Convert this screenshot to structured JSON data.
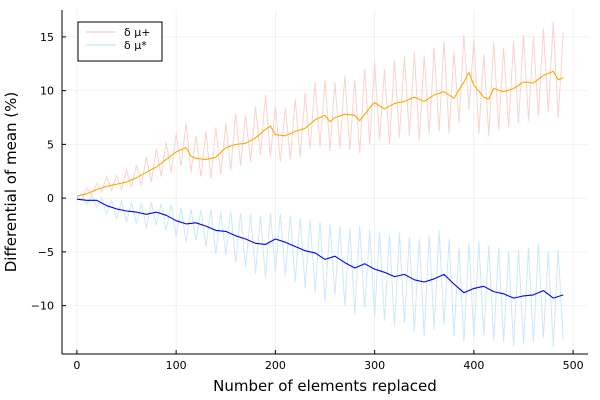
{
  "chart_data": {
    "type": "line",
    "xlabel": "Number of elements replaced",
    "ylabel": "Differential of mean (%)",
    "xlim": [
      -15,
      515
    ],
    "ylim": [
      -14.5,
      17.5
    ],
    "xticks": [
      0,
      100,
      200,
      300,
      400,
      500
    ],
    "yticks": [
      -10,
      -5,
      0,
      5,
      10,
      15
    ],
    "xtick_labels": [
      "0",
      "100",
      "200",
      "300",
      "400",
      "500"
    ],
    "ytick_labels": [
      "−10",
      "−5",
      "0",
      "5",
      "10",
      "15"
    ],
    "grid": true,
    "legend_position": "top-left",
    "series": [
      {
        "name": "δ μ+",
        "color": "#ffa500",
        "raw_color": "#f8cfc6",
        "points": [
          [
            0,
            0.2
          ],
          [
            10,
            0.4
          ],
          [
            20,
            0.8
          ],
          [
            30,
            1.1
          ],
          [
            40,
            1.3
          ],
          [
            50,
            1.5
          ],
          [
            60,
            1.9
          ],
          [
            70,
            2.4
          ],
          [
            80,
            2.9
          ],
          [
            90,
            3.6
          ],
          [
            100,
            4.3
          ],
          [
            110,
            4.7
          ],
          [
            115,
            3.9
          ],
          [
            120,
            3.7
          ],
          [
            130,
            3.6
          ],
          [
            140,
            3.8
          ],
          [
            150,
            4.7
          ],
          [
            160,
            5.0
          ],
          [
            170,
            5.1
          ],
          [
            180,
            5.6
          ],
          [
            190,
            6.4
          ],
          [
            195,
            6.7
          ],
          [
            200,
            5.9
          ],
          [
            210,
            5.8
          ],
          [
            220,
            6.2
          ],
          [
            230,
            6.5
          ],
          [
            240,
            7.3
          ],
          [
            250,
            7.7
          ],
          [
            255,
            7.1
          ],
          [
            260,
            7.5
          ],
          [
            270,
            7.8
          ],
          [
            280,
            7.7
          ],
          [
            285,
            7.2
          ],
          [
            295,
            8.4
          ],
          [
            300,
            8.9
          ],
          [
            310,
            8.3
          ],
          [
            320,
            8.8
          ],
          [
            330,
            9.0
          ],
          [
            340,
            9.4
          ],
          [
            350,
            9.0
          ],
          [
            360,
            9.6
          ],
          [
            370,
            9.9
          ],
          [
            380,
            9.3
          ],
          [
            390,
            10.8
          ],
          [
            395,
            11.7
          ],
          [
            400,
            10.5
          ],
          [
            410,
            9.4
          ],
          [
            415,
            9.2
          ],
          [
            420,
            10.2
          ],
          [
            430,
            9.9
          ],
          [
            440,
            10.2
          ],
          [
            450,
            10.8
          ],
          [
            460,
            10.7
          ],
          [
            470,
            11.4
          ],
          [
            480,
            11.8
          ],
          [
            485,
            11.0
          ],
          [
            490,
            11.2
          ]
        ],
        "noisy_points": [
          [
            0,
            0.2
          ],
          [
            5,
            -0.2
          ],
          [
            10,
            0.9
          ],
          [
            15,
            0.3
          ],
          [
            20,
            1.4
          ],
          [
            25,
            0.6
          ],
          [
            30,
            2.0
          ],
          [
            35,
            0.7
          ],
          [
            40,
            2.1
          ],
          [
            45,
            0.8
          ],
          [
            50,
            2.6
          ],
          [
            55,
            1.0
          ],
          [
            60,
            3.1
          ],
          [
            65,
            1.2
          ],
          [
            70,
            3.8
          ],
          [
            75,
            1.5
          ],
          [
            80,
            4.6
          ],
          [
            85,
            2.0
          ],
          [
            90,
            5.2
          ],
          [
            95,
            2.4
          ],
          [
            100,
            6.0
          ],
          [
            105,
            3.0
          ],
          [
            110,
            7.0
          ],
          [
            115,
            2.4
          ],
          [
            120,
            5.8
          ],
          [
            125,
            2.0
          ],
          [
            130,
            6.2
          ],
          [
            135,
            1.8
          ],
          [
            140,
            6.6
          ],
          [
            145,
            2.2
          ],
          [
            150,
            7.0
          ],
          [
            155,
            2.6
          ],
          [
            160,
            7.9
          ],
          [
            165,
            3.0
          ],
          [
            170,
            7.7
          ],
          [
            175,
            3.4
          ],
          [
            180,
            8.5
          ],
          [
            185,
            4.0
          ],
          [
            190,
            9.6
          ],
          [
            195,
            3.8
          ],
          [
            200,
            8.6
          ],
          [
            205,
            3.4
          ],
          [
            210,
            8.4
          ],
          [
            215,
            3.6
          ],
          [
            220,
            9.2
          ],
          [
            225,
            3.8
          ],
          [
            230,
            9.8
          ],
          [
            235,
            4.6
          ],
          [
            240,
            10.8
          ],
          [
            245,
            4.8
          ],
          [
            250,
            11.0
          ],
          [
            255,
            4.4
          ],
          [
            260,
            10.8
          ],
          [
            265,
            4.6
          ],
          [
            270,
            11.4
          ],
          [
            275,
            4.5
          ],
          [
            280,
            11.0
          ],
          [
            285,
            4.2
          ],
          [
            290,
            12.0
          ],
          [
            295,
            5.0
          ],
          [
            300,
            12.6
          ],
          [
            305,
            5.4
          ],
          [
            310,
            12.0
          ],
          [
            315,
            5.0
          ],
          [
            320,
            12.8
          ],
          [
            325,
            5.6
          ],
          [
            330,
            13.2
          ],
          [
            335,
            5.8
          ],
          [
            340,
            13.6
          ],
          [
            345,
            5.4
          ],
          [
            350,
            13.2
          ],
          [
            355,
            6.0
          ],
          [
            360,
            14.0
          ],
          [
            365,
            6.2
          ],
          [
            370,
            14.6
          ],
          [
            375,
            6.0
          ],
          [
            380,
            13.6
          ],
          [
            385,
            7.0
          ],
          [
            390,
            15.2
          ],
          [
            395,
            8.2
          ],
          [
            400,
            14.8
          ],
          [
            405,
            6.0
          ],
          [
            410,
            13.4
          ],
          [
            415,
            5.8
          ],
          [
            420,
            14.6
          ],
          [
            425,
            6.4
          ],
          [
            430,
            14.0
          ],
          [
            435,
            6.6
          ],
          [
            440,
            14.6
          ],
          [
            445,
            7.0
          ],
          [
            450,
            15.2
          ],
          [
            455,
            7.2
          ],
          [
            460,
            15.0
          ],
          [
            465,
            7.6
          ],
          [
            470,
            15.8
          ],
          [
            475,
            8.0
          ],
          [
            480,
            16.4
          ],
          [
            485,
            7.4
          ],
          [
            490,
            15.4
          ]
        ]
      },
      {
        "name": "δ μ*",
        "color": "#0000ff",
        "raw_color": "#c7e6fb",
        "points": [
          [
            0,
            -0.1
          ],
          [
            10,
            -0.2
          ],
          [
            20,
            -0.2
          ],
          [
            30,
            -0.7
          ],
          [
            40,
            -1.0
          ],
          [
            50,
            -1.2
          ],
          [
            60,
            -1.3
          ],
          [
            70,
            -1.5
          ],
          [
            80,
            -1.3
          ],
          [
            90,
            -1.6
          ],
          [
            100,
            -2.1
          ],
          [
            110,
            -2.4
          ],
          [
            120,
            -2.3
          ],
          [
            130,
            -2.6
          ],
          [
            140,
            -3.0
          ],
          [
            150,
            -3.1
          ],
          [
            160,
            -3.5
          ],
          [
            170,
            -3.8
          ],
          [
            180,
            -4.2
          ],
          [
            190,
            -4.3
          ],
          [
            200,
            -3.8
          ],
          [
            210,
            -4.1
          ],
          [
            220,
            -4.5
          ],
          [
            230,
            -4.9
          ],
          [
            240,
            -5.1
          ],
          [
            250,
            -5.7
          ],
          [
            260,
            -5.4
          ],
          [
            270,
            -6.0
          ],
          [
            280,
            -6.5
          ],
          [
            290,
            -6.1
          ],
          [
            300,
            -6.6
          ],
          [
            310,
            -6.9
          ],
          [
            320,
            -7.3
          ],
          [
            330,
            -7.1
          ],
          [
            340,
            -7.6
          ],
          [
            350,
            -7.8
          ],
          [
            360,
            -7.5
          ],
          [
            370,
            -7.1
          ],
          [
            380,
            -8.0
          ],
          [
            390,
            -8.8
          ],
          [
            400,
            -8.4
          ],
          [
            410,
            -8.2
          ],
          [
            420,
            -8.7
          ],
          [
            430,
            -8.9
          ],
          [
            440,
            -9.3
          ],
          [
            450,
            -9.1
          ],
          [
            460,
            -9.0
          ],
          [
            470,
            -8.6
          ],
          [
            480,
            -9.3
          ],
          [
            490,
            -9.0
          ]
        ],
        "noisy_points": [
          [
            0,
            -0.1
          ],
          [
            5,
            0.4
          ],
          [
            10,
            -0.6
          ],
          [
            15,
            0.3
          ],
          [
            20,
            -0.9
          ],
          [
            25,
            0.0
          ],
          [
            30,
            -1.5
          ],
          [
            35,
            -0.2
          ],
          [
            40,
            -1.9
          ],
          [
            45,
            -0.3
          ],
          [
            50,
            -2.2
          ],
          [
            55,
            -0.4
          ],
          [
            60,
            -2.4
          ],
          [
            65,
            -0.5
          ],
          [
            70,
            -2.8
          ],
          [
            75,
            -0.4
          ],
          [
            80,
            -2.5
          ],
          [
            85,
            -0.5
          ],
          [
            90,
            -3.0
          ],
          [
            95,
            -0.6
          ],
          [
            100,
            -3.6
          ],
          [
            105,
            -0.9
          ],
          [
            110,
            -4.1
          ],
          [
            115,
            -1.0
          ],
          [
            120,
            -3.9
          ],
          [
            125,
            -1.1
          ],
          [
            130,
            -4.5
          ],
          [
            135,
            -1.0
          ],
          [
            140,
            -5.2
          ],
          [
            145,
            -1.3
          ],
          [
            150,
            -5.3
          ],
          [
            155,
            -1.2
          ],
          [
            160,
            -6.0
          ],
          [
            165,
            -1.4
          ],
          [
            170,
            -6.4
          ],
          [
            175,
            -1.5
          ],
          [
            180,
            -7.0
          ],
          [
            185,
            -1.6
          ],
          [
            190,
            -7.4
          ],
          [
            195,
            -1.4
          ],
          [
            200,
            -6.8
          ],
          [
            205,
            -1.5
          ],
          [
            210,
            -7.2
          ],
          [
            215,
            -1.6
          ],
          [
            220,
            -7.8
          ],
          [
            225,
            -1.8
          ],
          [
            230,
            -8.4
          ],
          [
            235,
            -2.0
          ],
          [
            240,
            -8.8
          ],
          [
            245,
            -2.2
          ],
          [
            250,
            -9.6
          ],
          [
            255,
            -2.4
          ],
          [
            260,
            -9.0
          ],
          [
            265,
            -2.6
          ],
          [
            270,
            -10.0
          ],
          [
            275,
            -2.8
          ],
          [
            280,
            -10.8
          ],
          [
            285,
            -2.6
          ],
          [
            290,
            -10.2
          ],
          [
            295,
            -3.0
          ],
          [
            300,
            -11.0
          ],
          [
            305,
            -3.2
          ],
          [
            310,
            -11.4
          ],
          [
            315,
            -3.4
          ],
          [
            320,
            -12.0
          ],
          [
            325,
            -3.2
          ],
          [
            330,
            -11.6
          ],
          [
            335,
            -3.6
          ],
          [
            340,
            -12.4
          ],
          [
            345,
            -3.8
          ],
          [
            350,
            -12.8
          ],
          [
            355,
            -3.4
          ],
          [
            360,
            -12.2
          ],
          [
            365,
            -3.0
          ],
          [
            370,
            -11.8
          ],
          [
            375,
            -3.8
          ],
          [
            380,
            -12.8
          ],
          [
            385,
            -4.6
          ],
          [
            390,
            -13.4
          ],
          [
            395,
            -4.2
          ],
          [
            400,
            -13.0
          ],
          [
            405,
            -4.0
          ],
          [
            410,
            -12.8
          ],
          [
            415,
            -4.4
          ],
          [
            420,
            -13.2
          ],
          [
            425,
            -4.6
          ],
          [
            430,
            -13.4
          ],
          [
            435,
            -5.0
          ],
          [
            440,
            -13.8
          ],
          [
            445,
            -4.8
          ],
          [
            450,
            -13.6
          ],
          [
            455,
            -4.6
          ],
          [
            460,
            -13.4
          ],
          [
            465,
            -4.2
          ],
          [
            470,
            -13.0
          ],
          [
            475,
            -5.0
          ],
          [
            480,
            -13.8
          ],
          [
            485,
            -4.8
          ],
          [
            490,
            -13.2
          ]
        ]
      }
    ]
  }
}
